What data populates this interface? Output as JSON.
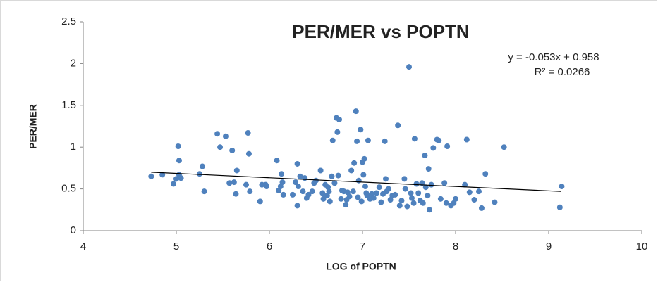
{
  "chart_data": {
    "type": "scatter",
    "title": "PER/MER vs POPTN",
    "x_label": "LOG of POPTN",
    "y_label": "PER/MER",
    "annotations": [
      "y = -0.053x + 0.958",
      "R² = 0.0266"
    ],
    "color": "#4f81bd",
    "xlim": [
      4,
      10
    ],
    "xticks": [
      4,
      5,
      6,
      7,
      8,
      9,
      10
    ],
    "ylim": [
      0,
      2.5
    ],
    "yticks": [
      0,
      0.5,
      1,
      1.5,
      2,
      2.5
    ],
    "grid": false,
    "x": [
      4.73,
      4.85,
      4.97,
      5.02,
      5.03,
      5.03,
      5.05,
      5.0,
      5.25,
      5.28,
      5.3,
      5.44,
      5.47,
      5.53,
      5.57,
      5.6,
      5.62,
      5.64,
      5.65,
      5.75,
      5.77,
      5.78,
      5.79,
      5.9,
      5.92,
      5.96,
      5.97,
      6.08,
      6.1,
      6.12,
      6.13,
      6.14,
      6.15,
      6.25,
      6.28,
      6.3,
      6.3,
      6.31,
      6.33,
      6.36,
      6.38,
      6.4,
      6.42,
      6.46,
      6.48,
      6.5,
      6.55,
      6.57,
      6.58,
      6.6,
      6.62,
      6.63,
      6.64,
      6.65,
      6.67,
      6.68,
      6.7,
      6.72,
      6.73,
      6.74,
      6.75,
      6.77,
      6.78,
      6.8,
      6.82,
      6.83,
      6.84,
      6.86,
      6.88,
      6.9,
      6.91,
      6.93,
      6.94,
      6.95,
      6.96,
      6.98,
      6.99,
      7.0,
      7.01,
      7.02,
      7.03,
      7.04,
      7.05,
      7.06,
      7.08,
      7.1,
      7.12,
      7.15,
      7.18,
      7.2,
      7.22,
      7.24,
      7.25,
      7.26,
      7.28,
      7.3,
      7.32,
      7.35,
      7.38,
      7.4,
      7.42,
      7.45,
      7.46,
      7.48,
      7.5,
      7.52,
      7.53,
      7.55,
      7.56,
      7.58,
      7.6,
      7.62,
      7.64,
      7.65,
      7.67,
      7.68,
      7.7,
      7.71,
      7.72,
      7.74,
      7.76,
      7.8,
      7.82,
      7.84,
      7.88,
      7.9,
      7.91,
      7.95,
      7.98,
      8.0,
      8.1,
      8.12,
      8.15,
      8.2,
      8.25,
      8.28,
      8.32,
      8.42,
      8.52,
      9.12,
      9.14
    ],
    "y": [
      0.65,
      0.67,
      0.56,
      1.01,
      0.84,
      0.67,
      0.63,
      0.62,
      0.68,
      0.77,
      0.47,
      1.16,
      1.0,
      1.13,
      0.57,
      0.96,
      0.58,
      0.44,
      0.72,
      0.55,
      1.17,
      0.92,
      0.47,
      0.35,
      0.55,
      0.55,
      0.53,
      0.84,
      0.48,
      0.53,
      0.68,
      0.58,
      0.43,
      0.43,
      0.58,
      0.8,
      0.3,
      0.53,
      0.65,
      0.47,
      0.63,
      0.39,
      0.43,
      0.47,
      0.57,
      0.6,
      0.72,
      0.45,
      0.38,
      0.55,
      0.42,
      0.52,
      0.47,
      0.35,
      0.65,
      1.08,
      0.57,
      1.35,
      1.18,
      0.66,
      1.33,
      0.38,
      0.48,
      0.47,
      0.31,
      0.37,
      0.46,
      0.41,
      0.72,
      0.47,
      0.81,
      1.43,
      1.07,
      0.4,
      0.6,
      1.21,
      0.35,
      0.82,
      0.67,
      0.86,
      0.53,
      0.45,
      0.42,
      1.08,
      0.38,
      0.44,
      0.39,
      0.45,
      0.52,
      0.34,
      0.44,
      1.07,
      0.62,
      0.47,
      0.5,
      0.37,
      0.42,
      0.43,
      1.26,
      0.3,
      0.36,
      0.62,
      0.5,
      0.29,
      1.96,
      0.45,
      0.39,
      0.33,
      1.1,
      0.56,
      0.45,
      0.36,
      0.57,
      0.33,
      0.9,
      0.52,
      0.42,
      0.74,
      0.25,
      0.55,
      0.99,
      1.09,
      1.08,
      0.38,
      0.57,
      0.33,
      1.01,
      0.3,
      0.33,
      0.38,
      0.55,
      1.09,
      0.46,
      0.37,
      0.47,
      0.27,
      0.68,
      0.34,
      1.0,
      0.28,
      0.53
    ],
    "trendline": {
      "x": [
        4.73,
        9.13
      ],
      "y": [
        0.7,
        0.47
      ],
      "color": "#000000"
    }
  }
}
